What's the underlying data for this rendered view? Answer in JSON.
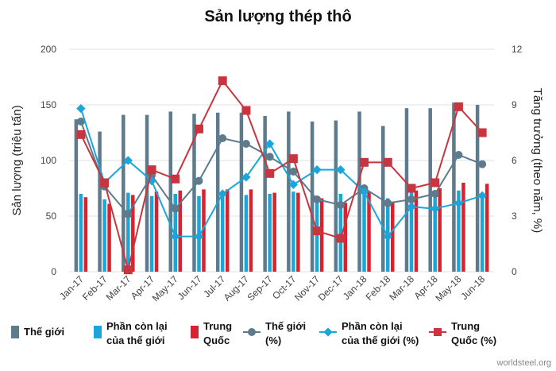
{
  "chart_data": {
    "type": "bar+line",
    "title": "Sản lượng thép thô",
    "ylabel_left": "Sản lượng (triệu tấn)",
    "ylabel_right": "Tăng trưởng (theo năm, %)",
    "ylim_left": [
      0,
      200
    ],
    "yticks_left": [
      0,
      50,
      100,
      150,
      200
    ],
    "ylim_right": [
      0,
      12
    ],
    "yticks_right": [
      0,
      3,
      6,
      9,
      12
    ],
    "grid": true,
    "legend_position": "bottom",
    "categories": [
      "Jan-17",
      "Feb-17",
      "Mar-17",
      "Apr-17",
      "May-17",
      "Jun-17",
      "Jul-17",
      "Aug-17",
      "Sep-17",
      "Oct-17",
      "Nov-17",
      "Dec-17",
      "Jan-18",
      "Feb-18",
      "Mar-18",
      "Apr-18",
      "May-18",
      "Jun-18"
    ],
    "bar_series": [
      {
        "name": "Thế giới",
        "color": "#5d7b8c",
        "values": [
          137,
          126,
          141,
          141,
          144,
          142,
          143,
          143,
          140,
          144,
          135,
          136,
          144,
          131,
          147,
          147,
          152,
          150
        ]
      },
      {
        "name": "Phần còn lại\ncủa thế giới",
        "color": "#1aa6d9",
        "values": [
          70,
          65,
          71,
          68,
          70,
          68,
          70,
          69,
          70,
          72,
          64,
          70,
          72,
          66,
          73,
          73,
          73,
          68
        ]
      },
      {
        "name": "Trung\nQuốc",
        "color": "#d9222f",
        "values": [
          67,
          61,
          69,
          72,
          73,
          74,
          74,
          74,
          71,
          71,
          66,
          62,
          72,
          63,
          73,
          75,
          80,
          79
        ]
      }
    ],
    "line_series": [
      {
        "name": "Thế giới\n(%)",
        "color": "#5d7b8c",
        "values": [
          8.1,
          4.6,
          3.1,
          5.2,
          3.4,
          4.9,
          7.2,
          6.9,
          6.2,
          5.4,
          3.9,
          3.6,
          4.5,
          3.7,
          3.9,
          4.2,
          6.3,
          5.8
        ]
      },
      {
        "name": "Phần còn lại\ncủa thế giới (%)",
        "color": "#1aa6d9",
        "values": [
          8.8,
          4.8,
          6.0,
          4.9,
          1.9,
          1.9,
          4.2,
          5.1,
          6.9,
          4.7,
          5.5,
          5.5,
          4.3,
          1.9,
          3.5,
          3.4,
          3.7,
          4.1
        ]
      },
      {
        "name": "Trung\nQuốc (%)",
        "color": "#c9353e",
        "values": [
          7.4,
          4.8,
          0.1,
          5.5,
          5.0,
          7.7,
          10.3,
          8.7,
          5.3,
          6.1,
          2.2,
          1.8,
          5.9,
          5.9,
          4.5,
          4.8,
          8.9,
          7.5
        ]
      }
    ],
    "source": "worldsteel.org"
  }
}
